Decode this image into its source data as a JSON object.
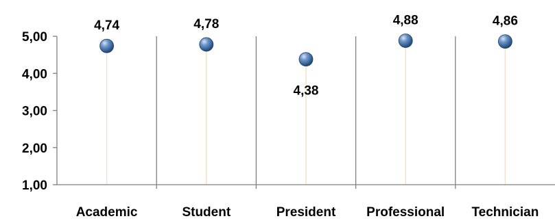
{
  "chart_data": {
    "type": "scatter",
    "title": "",
    "xlabel": "",
    "ylabel": "",
    "categories": [
      "Academic",
      "Student",
      "President",
      "Professional",
      "Technician"
    ],
    "values": [
      4.74,
      4.78,
      4.38,
      4.88,
      4.86
    ],
    "value_labels": [
      "4,74",
      "4,78",
      "4,38",
      "4,88",
      "4,86"
    ],
    "label_positions": [
      "above",
      "above",
      "below",
      "above",
      "above"
    ],
    "ylim": [
      1,
      5
    ],
    "y_ticks": [
      1,
      2,
      3,
      4,
      5
    ],
    "y_tick_labels": [
      "1,00",
      "2,00",
      "3,00",
      "4,00",
      "5,00"
    ],
    "grid": "vertical category dividers",
    "legend": "none",
    "marker_color": "#3c6ba5",
    "drop_line_color": "#f2e3c9"
  }
}
